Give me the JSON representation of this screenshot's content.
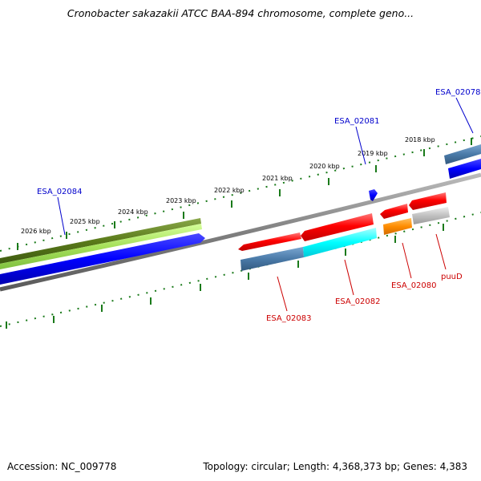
{
  "title": "Cronobacter sakazakii ATCC BAA-894 chromosome, complete geno...",
  "footer": {
    "accession": "Accession: NC_009778",
    "summary": "Topology: circular; Length: 4,368,373 bp; Genes: 4,383"
  },
  "colors": {
    "forward_label": "#0000cc",
    "reverse_label": "#cc0000",
    "tick": "#1a7a1a",
    "backbone": "#808080"
  },
  "scale_labels": [
    "2026 kbp",
    "2025 kbp",
    "2024 kbp",
    "2023 kbp",
    "2022 kbp",
    "2021 kbp",
    "2020 kbp",
    "2019 kbp",
    "2018 kbp"
  ],
  "gene_labels": [
    "ESA_02084",
    "ESA_02081",
    "ESA_02078",
    "ESA_02083",
    "ESA_02082",
    "ESA_02080",
    "puuD"
  ],
  "track_colors": {
    "olive": "#5a7a1a",
    "light_green": "#a6e05a",
    "blue": "#0000ff",
    "red": "#ff0000",
    "steel": "#4a7aa8",
    "cyan": "#00ffff",
    "orange": "#ff8c00",
    "silver": "#c0c0c0"
  }
}
